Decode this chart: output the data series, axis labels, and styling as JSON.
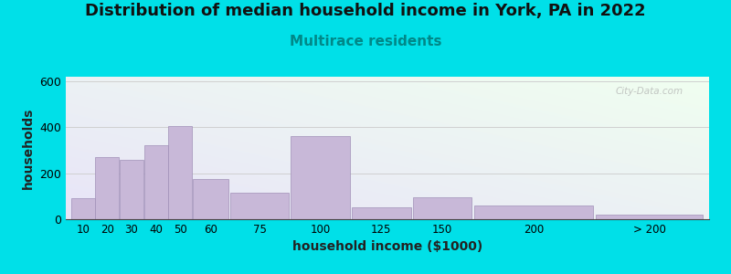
{
  "title": "Distribution of median household income in York, PA in 2022",
  "subtitle": "Multirace residents",
  "xlabel": "household income ($1000)",
  "ylabel": "households",
  "bar_color": "#c8b8d8",
  "bar_edge_color": "#a090b8",
  "background_outer": "#00e0e8",
  "ylim": [
    0,
    620
  ],
  "yticks": [
    0,
    200,
    400,
    600
  ],
  "categories": [
    "10",
    "20",
    "30",
    "40",
    "50",
    "60",
    "75",
    "100",
    "125",
    "150",
    "200",
    "> 200"
  ],
  "values": [
    90,
    270,
    260,
    320,
    405,
    175,
    115,
    360,
    50,
    95,
    60,
    18
  ],
  "bar_lefts": [
    0,
    10,
    20,
    30,
    40,
    50,
    65,
    90,
    115,
    140,
    165,
    215
  ],
  "bar_widths": [
    10,
    10,
    10,
    10,
    10,
    15,
    25,
    25,
    25,
    25,
    50,
    45
  ],
  "xtick_labels": [
    "10",
    "20",
    "30",
    "40",
    "50",
    "60",
    "75",
    "100",
    "125",
    "150",
    "200",
    "> 200"
  ],
  "watermark": "City-Data.com",
  "title_fontsize": 13,
  "subtitle_fontsize": 11,
  "subtitle_color": "#008888",
  "axis_label_fontsize": 10
}
